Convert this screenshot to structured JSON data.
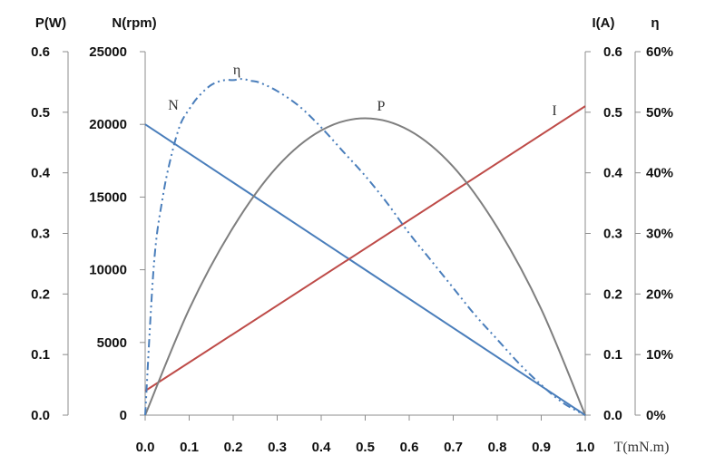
{
  "chart_data": {
    "type": "line",
    "title": "",
    "xlabel": "T(mN.m)",
    "xlim": [
      0,
      1.0
    ],
    "x_ticks": [
      "0.0",
      "0.1",
      "0.2",
      "0.3",
      "0.4",
      "0.5",
      "0.6",
      "0.7",
      "0.8",
      "0.9",
      "1.0"
    ],
    "axes": {
      "P": {
        "label": "P(W)",
        "lim": [
          0,
          0.6
        ],
        "ticks": [
          "0.0",
          "0.1",
          "0.2",
          "0.3",
          "0.4",
          "0.5",
          "0.6"
        ]
      },
      "N": {
        "label": "N(rpm)",
        "lim": [
          0,
          25000
        ],
        "ticks": [
          "0",
          "5000",
          "10000",
          "15000",
          "20000",
          "25000"
        ]
      },
      "I": {
        "label": "I(A)",
        "lim": [
          0,
          0.6
        ],
        "ticks": [
          "0.0",
          "0.1",
          "0.2",
          "0.3",
          "0.4",
          "0.5",
          "0.6"
        ]
      },
      "eta": {
        "label": "η",
        "lim": [
          0,
          60
        ],
        "ticks": [
          "0%",
          "10%",
          "20%",
          "30%",
          "40%",
          "50%",
          "60%"
        ]
      }
    },
    "series": [
      {
        "name": "N",
        "axis": "N",
        "color": "#4a7ebb",
        "style": "solid",
        "x": [
          0,
          1.0
        ],
        "y": [
          20000,
          0
        ]
      },
      {
        "name": "I",
        "axis": "I",
        "color": "#be4b48",
        "style": "solid",
        "x": [
          0,
          1.0
        ],
        "y": [
          0.04,
          0.51
        ]
      },
      {
        "name": "P",
        "axis": "P",
        "color": "#7f7f7f",
        "style": "solid",
        "x": [
          0,
          0.1,
          0.2,
          0.3,
          0.4,
          0.5,
          0.6,
          0.7,
          0.8,
          0.9,
          1.0
        ],
        "y": [
          0,
          0.175,
          0.31,
          0.41,
          0.47,
          0.49,
          0.47,
          0.41,
          0.31,
          0.175,
          0
        ]
      },
      {
        "name": "η",
        "axis": "eta",
        "color": "#4a7ebb",
        "style": "dashdotdot",
        "x": [
          0,
          0.02,
          0.04,
          0.06,
          0.08,
          0.1,
          0.12,
          0.15,
          0.18,
          0.2,
          0.22,
          0.24,
          0.26,
          0.3,
          0.35,
          0.4,
          0.45,
          0.5,
          0.55,
          0.6,
          0.65,
          0.7,
          0.75,
          0.8,
          0.85,
          0.9,
          0.95,
          1.0
        ],
        "y": [
          0,
          25,
          36,
          43,
          48,
          50.5,
          52.5,
          54.5,
          55.3,
          55.3,
          55.5,
          55.2,
          54.9,
          53.5,
          51,
          47.5,
          43.5,
          39.5,
          35,
          30,
          25.5,
          21,
          16.5,
          12.5,
          8.5,
          5,
          2,
          0
        ]
      }
    ]
  }
}
